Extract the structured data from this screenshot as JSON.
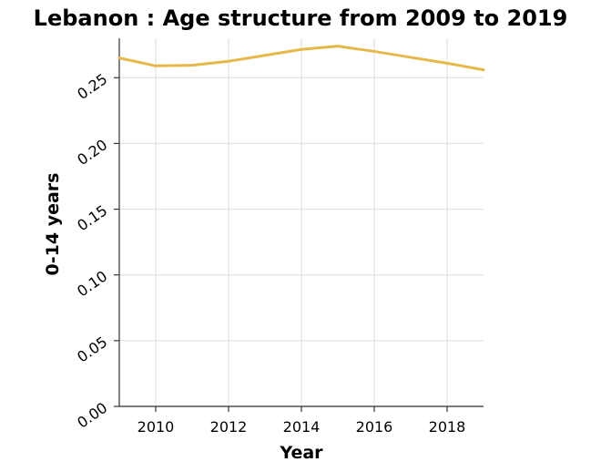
{
  "chart_data": {
    "type": "line",
    "title": "Lebanon : Age structure from 2009 to 2019",
    "xlabel": "Year",
    "ylabel": "0-14 years",
    "x": [
      2009,
      2010,
      2011,
      2012,
      2013,
      2014,
      2015,
      2016,
      2017,
      2018,
      2019
    ],
    "series": [
      {
        "values": [
          0.265,
          0.259,
          0.2595,
          0.2625,
          0.267,
          0.2715,
          0.274,
          0.27,
          0.2655,
          0.261,
          0.256
        ],
        "color": "#e6b84a"
      }
    ],
    "xlim": [
      2009,
      2019
    ],
    "ylim": [
      0,
      0.28
    ],
    "xticks": [
      {
        "value": 2010,
        "label": "2010"
      },
      {
        "value": 2012,
        "label": "2012"
      },
      {
        "value": 2014,
        "label": "2014"
      },
      {
        "value": 2016,
        "label": "2016"
      },
      {
        "value": 2018,
        "label": "2018"
      }
    ],
    "yticks": [
      {
        "value": 0.0,
        "label": "0.00"
      },
      {
        "value": 0.05,
        "label": "0.05"
      },
      {
        "value": 0.1,
        "label": "0.10"
      },
      {
        "value": 0.15,
        "label": "0.15"
      },
      {
        "value": 0.2,
        "label": "0.20"
      },
      {
        "value": 0.25,
        "label": "0.25"
      }
    ],
    "grid": true,
    "legend": false
  }
}
